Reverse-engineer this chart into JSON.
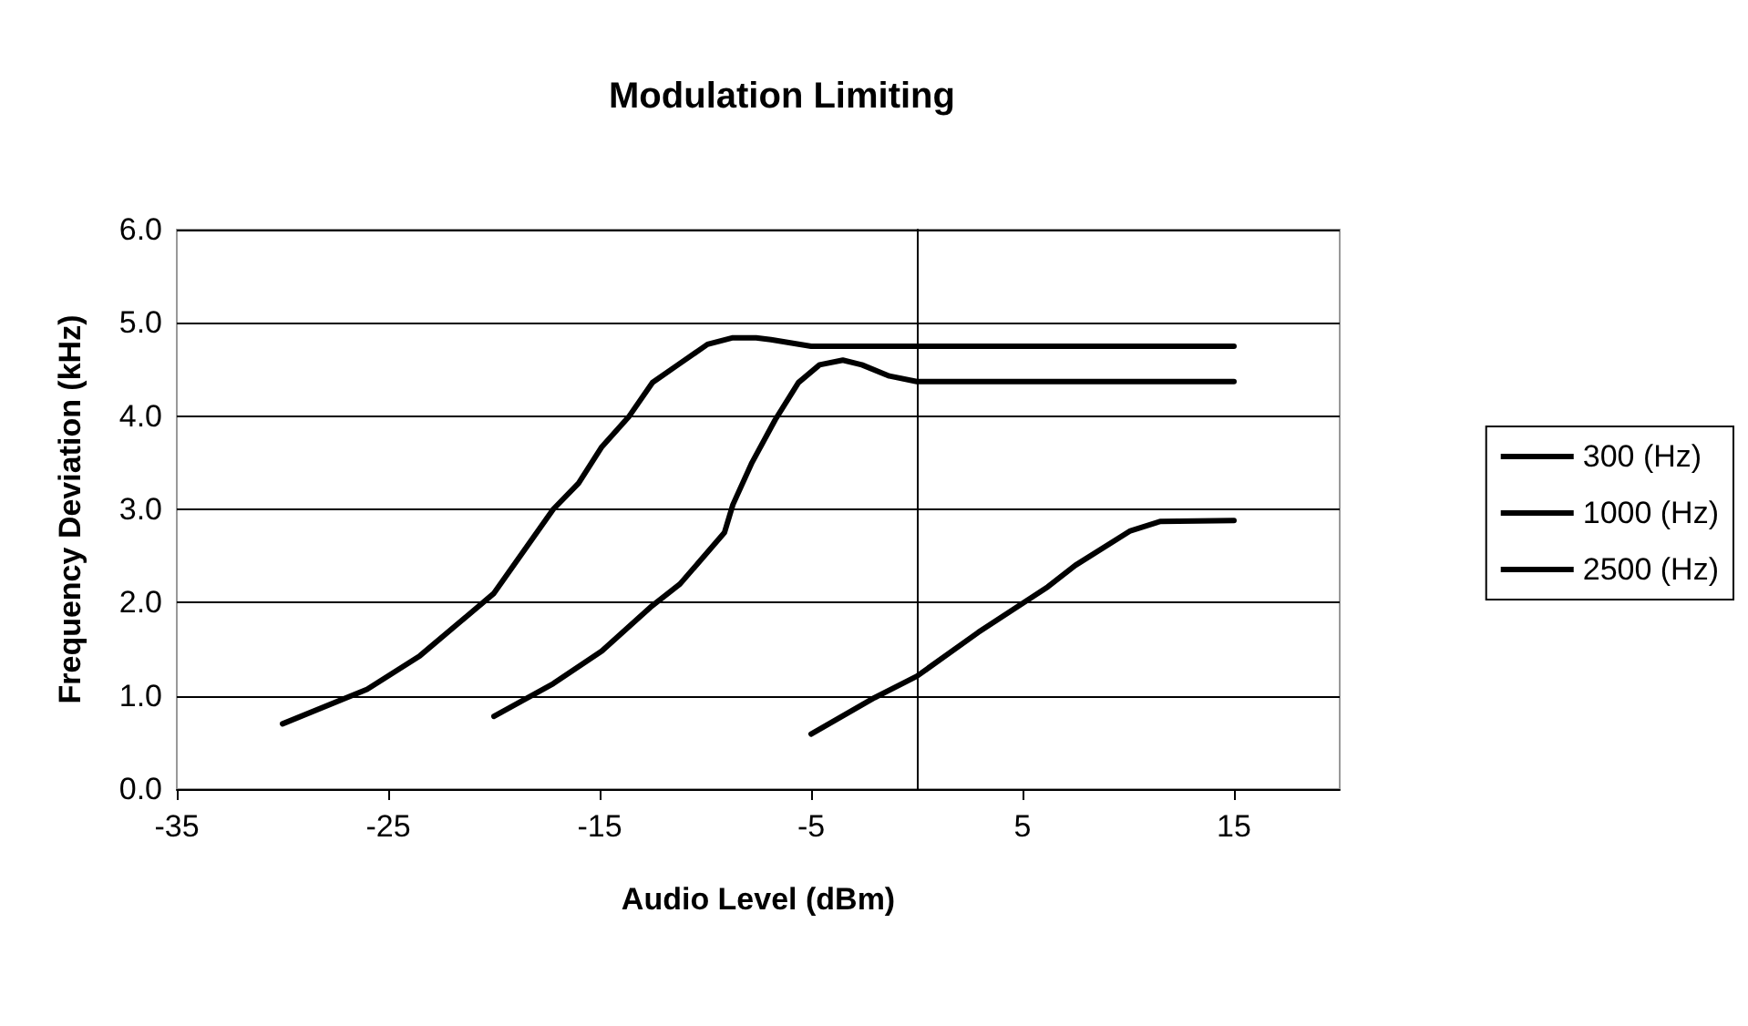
{
  "chart_data": {
    "type": "line",
    "title": "Modulation Limiting",
    "xlabel": "Audio Level (dBm)",
    "ylabel": "Frequency Deviation (kHz)",
    "xlim": [
      -35,
      20
    ],
    "xticks": [
      -35,
      -25,
      -15,
      -5,
      5,
      15
    ],
    "ylim": [
      0,
      6
    ],
    "yticks": [
      {
        "value": 0,
        "label": "0.0"
      },
      {
        "value": 1,
        "label": "1.0"
      },
      {
        "value": 2,
        "label": "2.0"
      },
      {
        "value": 3,
        "label": "3.0"
      },
      {
        "value": 4,
        "label": "4.0"
      },
      {
        "value": 5,
        "label": "5.0"
      },
      {
        "value": 6,
        "label": "6.0"
      }
    ],
    "grid": "y",
    "legend": "right",
    "marker": "none",
    "line_style": "solid",
    "series": [
      {
        "name": "300 (Hz)",
        "color": "#000000",
        "x": [
          -30,
          -26,
          -23.5,
          -20,
          -17.2,
          -16,
          -14.9,
          -13.6,
          -12.5,
          -11.3,
          -9.9,
          -8.7,
          -7.6,
          -6.9,
          -5,
          0,
          5,
          10,
          15
        ],
        "values": [
          0.7,
          1.07,
          1.43,
          2.1,
          3.0,
          3.28,
          3.67,
          4.0,
          4.36,
          4.55,
          4.77,
          4.84,
          4.84,
          4.82,
          4.75,
          4.75,
          4.75,
          4.75,
          4.75
        ]
      },
      {
        "name": "1000 (Hz)",
        "color": "#000000",
        "x": [
          -20,
          -17.2,
          -14.9,
          -12.6,
          -11.2,
          -9.1,
          -8.7,
          -7.8,
          -6.7,
          -5.6,
          -4.6,
          -3.5,
          -2.6,
          -1.3,
          0,
          5,
          10,
          15
        ],
        "values": [
          0.78,
          1.13,
          1.48,
          1.95,
          2.2,
          2.75,
          3.05,
          3.5,
          3.96,
          4.36,
          4.55,
          4.6,
          4.55,
          4.43,
          4.37,
          4.37,
          4.37,
          4.37
        ]
      },
      {
        "name": "2500 (Hz)",
        "color": "#000000",
        "x": [
          -5,
          -2,
          0,
          2.9,
          6.2,
          7.5,
          10.1,
          11.5,
          15
        ],
        "values": [
          0.59,
          0.98,
          1.21,
          1.68,
          2.17,
          2.4,
          2.77,
          2.87,
          2.88
        ]
      }
    ]
  }
}
